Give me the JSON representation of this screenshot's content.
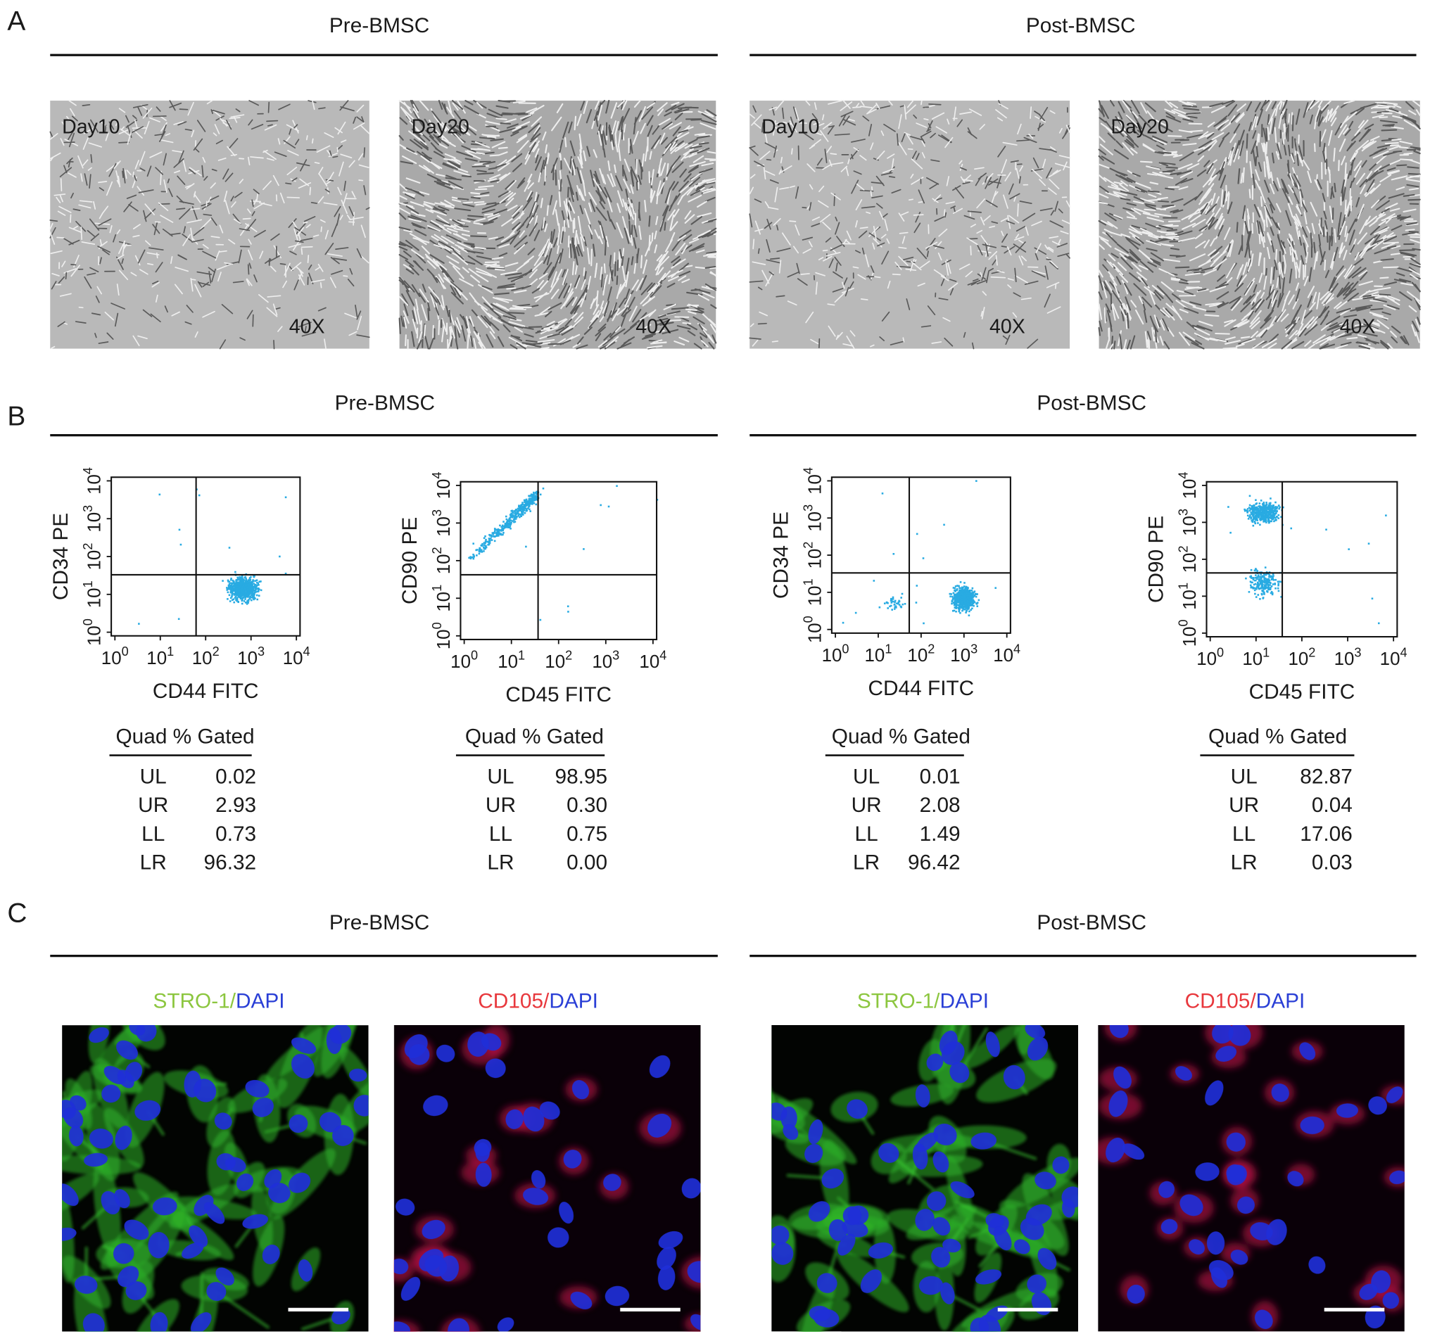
{
  "panels": [
    {
      "letter": "A",
      "groups": [
        {
          "title": "Pre-BMSC",
          "images": [
            {
              "day": "Day10",
              "mag": "40X"
            },
            {
              "day": "Day20",
              "mag": "40X"
            }
          ]
        },
        {
          "title": "Post-BMSC",
          "images": [
            {
              "day": "Day10",
              "mag": "40X"
            },
            {
              "day": "Day20",
              "mag": "40X"
            }
          ]
        }
      ]
    },
    {
      "letter": "B",
      "groups": [
        {
          "title": "Pre-BMSC",
          "plots": [
            {
              "ylabel": "CD34 PE",
              "xlabel": "CD44 FITC",
              "xticks": [
                {
                  "base": "10",
                  "exp": "0"
                },
                {
                  "base": "10",
                  "exp": "1"
                },
                {
                  "base": "10",
                  "exp": "2"
                },
                {
                  "base": "10",
                  "exp": "3"
                },
                {
                  "base": "10",
                  "exp": "4"
                }
              ],
              "yticks": [
                {
                  "base": "10",
                  "exp": "0"
                },
                {
                  "base": "10",
                  "exp": "1"
                },
                {
                  "base": "10",
                  "exp": "2"
                },
                {
                  "base": "10",
                  "exp": "3"
                },
                {
                  "base": "10",
                  "exp": "4"
                }
              ],
              "table": {
                "header": "Quad % Gated",
                "rows": [
                  [
                    "UL",
                    "0.02"
                  ],
                  [
                    "UR",
                    "2.93"
                  ],
                  [
                    "LL",
                    "0.73"
                  ],
                  [
                    "LR",
                    "96.32"
                  ]
                ]
              }
            },
            {
              "ylabel": "CD90 PE",
              "xlabel": "CD45 FITC",
              "xticks": [
                {
                  "base": "10",
                  "exp": "0"
                },
                {
                  "base": "10",
                  "exp": "1"
                },
                {
                  "base": "10",
                  "exp": "2"
                },
                {
                  "base": "10",
                  "exp": "3"
                },
                {
                  "base": "10",
                  "exp": "4"
                }
              ],
              "yticks": [
                {
                  "base": "10",
                  "exp": "0"
                },
                {
                  "base": "10",
                  "exp": "1"
                },
                {
                  "base": "10",
                  "exp": "2"
                },
                {
                  "base": "10",
                  "exp": "3"
                },
                {
                  "base": "10",
                  "exp": "4"
                }
              ],
              "table": {
                "header": "Quad % Gated",
                "rows": [
                  [
                    "UL",
                    "98.95"
                  ],
                  [
                    "UR",
                    "0.30"
                  ],
                  [
                    "LL",
                    "0.75"
                  ],
                  [
                    "LR",
                    "0.00"
                  ]
                ]
              }
            }
          ]
        },
        {
          "title": "Post-BMSC",
          "plots": [
            {
              "ylabel": "CD34 PE",
              "xlabel": "CD44 FITC",
              "xticks": [
                {
                  "base": "10",
                  "exp": "0"
                },
                {
                  "base": "10",
                  "exp": "1"
                },
                {
                  "base": "10",
                  "exp": "2"
                },
                {
                  "base": "10",
                  "exp": "3"
                },
                {
                  "base": "10",
                  "exp": "4"
                }
              ],
              "yticks": [
                {
                  "base": "10",
                  "exp": "0"
                },
                {
                  "base": "10",
                  "exp": "1"
                },
                {
                  "base": "10",
                  "exp": "2"
                },
                {
                  "base": "10",
                  "exp": "3"
                },
                {
                  "base": "10",
                  "exp": "4"
                }
              ],
              "table": {
                "header": "Quad % Gated",
                "rows": [
                  [
                    "UL",
                    "0.01"
                  ],
                  [
                    "UR",
                    "2.08"
                  ],
                  [
                    "LL",
                    "1.49"
                  ],
                  [
                    "LR",
                    "96.42"
                  ]
                ]
              }
            },
            {
              "ylabel": "CD90 PE",
              "xlabel": "CD45 FITC",
              "xticks": [
                {
                  "base": "10",
                  "exp": "0"
                },
                {
                  "base": "10",
                  "exp": "1"
                },
                {
                  "base": "10",
                  "exp": "2"
                },
                {
                  "base": "10",
                  "exp": "3"
                },
                {
                  "base": "10",
                  "exp": "4"
                }
              ],
              "yticks": [
                {
                  "base": "10",
                  "exp": "0"
                },
                {
                  "base": "10",
                  "exp": "1"
                },
                {
                  "base": "10",
                  "exp": "2"
                },
                {
                  "base": "10",
                  "exp": "3"
                },
                {
                  "base": "10",
                  "exp": "4"
                }
              ],
              "table": {
                "header": "Quad % Gated",
                "rows": [
                  [
                    "UL",
                    "82.87"
                  ],
                  [
                    "UR",
                    "0.04"
                  ],
                  [
                    "LL",
                    "17.06"
                  ],
                  [
                    "LR",
                    "0.03"
                  ]
                ]
              }
            }
          ]
        }
      ]
    },
    {
      "letter": "C",
      "groups": [
        {
          "title": "Pre-BMSC",
          "stains": [
            {
              "marker": "STRO-1",
              "sep": "/",
              "dapi": "DAPI"
            },
            {
              "marker": "CD105",
              "sep": "/",
              "dapi": "DAPI"
            }
          ]
        },
        {
          "title": "Post-BMSC",
          "stains": [
            {
              "marker": "STRO-1",
              "sep": "/",
              "dapi": "DAPI"
            },
            {
              "marker": "CD105",
              "sep": "/",
              "dapi": "DAPI"
            }
          ]
        }
      ]
    }
  ]
}
